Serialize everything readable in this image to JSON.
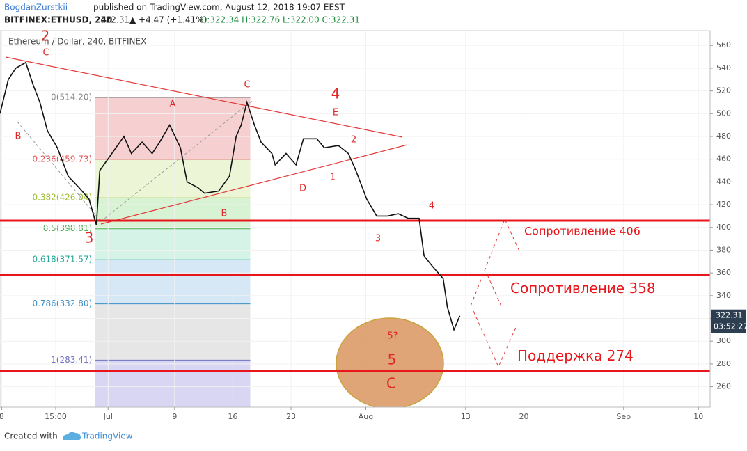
{
  "header": {
    "author": "BogdanZurstkii",
    "published": "published on TradingView.com, August 12, 2018 19:07 EEST",
    "symbol": "BITFINEX:ETHUSD, 240",
    "price": "322.31",
    "change": "▲ +4.47 (+1.41%)",
    "ohlc": "O:322.34 H:322.76 L:322.00 C:322.31"
  },
  "chart_data": {
    "type": "line",
    "title": "Ethereum / Dollar, 240, BITFINEX",
    "x": [
      -13,
      -12,
      -11.1,
      -9.9,
      -9,
      -8.2,
      -7.3,
      -6.1,
      -4.8,
      -3.5,
      -2.3,
      -1.4,
      -1,
      1.9,
      2.8,
      4.1,
      5.3,
      6.2,
      7.4,
      8.7,
      9.5,
      10.8,
      11.6,
      13.3,
      14.6,
      15.4,
      16,
      16.7,
      17.6,
      18.4,
      19.7,
      20.1,
      21.4,
      22.6,
      23.5,
      25.1,
      26,
      27.7,
      28.9,
      29.8,
      31.1,
      32.3,
      33.6,
      34.9,
      36.1,
      37.4,
      38,
      39.1,
      40.3,
      40.8,
      41.6,
      42.3
    ],
    "series": [
      {
        "name": "ETHUSD",
        "color": "#111111",
        "values": [
          500,
          530,
          540,
          545,
          525,
          510,
          485,
          470,
          445,
          435,
          425,
          402,
          450,
          480,
          465,
          475,
          465,
          475,
          490,
          470,
          440,
          435,
          430,
          432,
          445,
          480,
          490,
          510,
          490,
          475,
          465,
          455,
          465,
          455,
          478,
          478,
          470,
          472,
          465,
          450,
          425,
          410,
          410,
          412,
          408,
          408,
          375,
          365,
          355,
          330,
          310,
          322.31
        ]
      }
    ],
    "xlim": [
      -13,
      72.4
    ],
    "xticks": [
      {
        "value": -12.8,
        "label": "8"
      },
      {
        "value": -6.3,
        "label": "15:00"
      },
      {
        "value": 0,
        "label": "Jul"
      },
      {
        "value": 8,
        "label": "9"
      },
      {
        "value": 15,
        "label": "16"
      },
      {
        "value": 22,
        "label": "23"
      },
      {
        "value": 31,
        "label": "Aug"
      },
      {
        "value": 43,
        "label": "13"
      },
      {
        "value": 50,
        "label": "20"
      },
      {
        "value": 62,
        "label": "Sep"
      },
      {
        "value": 71,
        "label": "10"
      }
    ],
    "ylim": [
      242,
      573
    ],
    "yticks": [
      260,
      280,
      300,
      320,
      340,
      360,
      380,
      400,
      420,
      440,
      460,
      480,
      500,
      520,
      540,
      560
    ],
    "fib_range": [
      -1.6,
      17.1
    ],
    "fib_levels": [
      {
        "value": 514.2,
        "label": "0(514.20)",
        "color": "#888888",
        "fill": "#f6d0d0"
      },
      {
        "value": 459.73,
        "label": "0.236(459.73)",
        "color": "#e05050",
        "fill": "#ecf6d6"
      },
      {
        "value": 426.04,
        "label": "0.382(426.04)",
        "color": "#9bbf30",
        "fill": "#d8f2d4"
      },
      {
        "value": 398.81,
        "label": "0.5(398.81)",
        "color": "#4caf50",
        "fill": "#d5f3e6"
      },
      {
        "value": 371.57,
        "label": "0.618(371.57)",
        "color": "#26a69a",
        "fill": "#d6e8f5"
      },
      {
        "value": 332.8,
        "label": "0.786(332.80)",
        "color": "#3d8fc6",
        "fill": "#e6e6e6"
      },
      {
        "value": 283.41,
        "label": "1(283.41)",
        "color": "#7070c0",
        "fill": "#d8d6f2"
      }
    ],
    "levels": [
      {
        "value": 406,
        "label": "Сопротивление 406"
      },
      {
        "value": 358,
        "label": "Сопротивление 358"
      },
      {
        "value": 274,
        "label": "Поддержка 274"
      }
    ],
    "level_color": "#e8161b",
    "annotations": [
      "2",
      "C",
      "B",
      "3",
      "A",
      "C",
      "4",
      "E",
      "2",
      "1",
      "D",
      "B",
      "3",
      "4",
      "5?",
      "5",
      "C"
    ],
    "price_tag": "322.31",
    "timer": "03:52:27"
  },
  "footer": {
    "created": "Created with",
    "brand": "TradingView"
  }
}
